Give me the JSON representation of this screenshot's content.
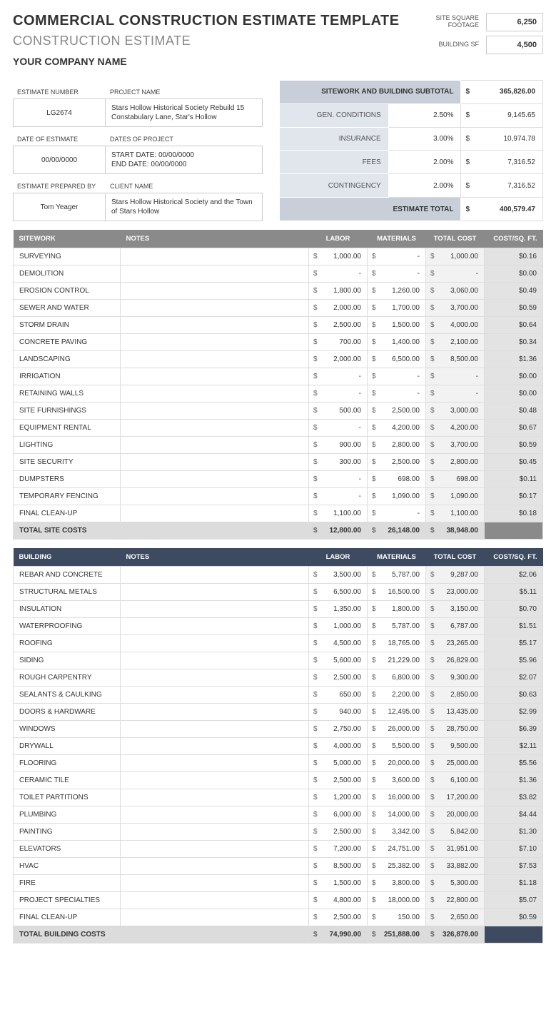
{
  "header": {
    "title": "COMMERCIAL CONSTRUCTION ESTIMATE TEMPLATE",
    "subtitle": "CONSTRUCTION ESTIMATE",
    "company": "YOUR COMPANY NAME"
  },
  "square": {
    "site_label": "SITE SQUARE FOOTAGE",
    "site_val": "6,250",
    "bldg_label": "BUILDING SF",
    "bldg_val": "4,500"
  },
  "meta": {
    "est_num_lbl": "ESTIMATE NUMBER",
    "proj_name_lbl": "PROJECT NAME",
    "est_num": "LG2674",
    "proj_name": "Stars Hollow Historical Society Rebuild 15 Constabulary Lane, Star's Hollow",
    "date_est_lbl": "DATE OF ESTIMATE",
    "dates_proj_lbl": "DATES OF PROJECT",
    "date_est": "00/00/0000",
    "dates_proj": "START DATE: 00/00/0000\nEND DATE: 00/00/0000",
    "prep_by_lbl": "ESTIMATE PREPARED BY",
    "client_lbl": "CLIENT NAME",
    "prep_by": "Tom Yeager",
    "client": "Stars Hollow Historical Society and the Town of Stars Hollow"
  },
  "subtotal": {
    "hdr": "SITEWORK AND BUILDING SUBTOTAL",
    "hdr_amt": "365,826.00",
    "rows": [
      {
        "lbl": "GEN. CONDITIONS",
        "pct": "2.50%",
        "amt": "9,145.65"
      },
      {
        "lbl": "INSURANCE",
        "pct": "3.00%",
        "amt": "10,974.78"
      },
      {
        "lbl": "FEES",
        "pct": "2.00%",
        "amt": "7,316.52"
      },
      {
        "lbl": "CONTINGENCY",
        "pct": "2.00%",
        "amt": "7,316.52"
      }
    ],
    "tot_lbl": "ESTIMATE TOTAL",
    "tot_amt": "400,579.47"
  },
  "sitework": {
    "header": [
      "SITEWORK",
      "NOTES",
      "LABOR",
      "MATERIALS",
      "TOTAL COST",
      "COST/SQ. FT."
    ],
    "rows": [
      {
        "n": "SURVEYING",
        "labor": "1,000.00",
        "mat": "-",
        "tot": "1,000.00",
        "sq": "$0.16"
      },
      {
        "n": "DEMOLITION",
        "labor": "-",
        "mat": "-",
        "tot": "-",
        "sq": "$0.00"
      },
      {
        "n": "EROSION CONTROL",
        "labor": "1,800.00",
        "mat": "1,260.00",
        "tot": "3,060.00",
        "sq": "$0.49"
      },
      {
        "n": "SEWER AND WATER",
        "labor": "2,000.00",
        "mat": "1,700.00",
        "tot": "3,700.00",
        "sq": "$0.59"
      },
      {
        "n": "STORM DRAIN",
        "labor": "2,500.00",
        "mat": "1,500.00",
        "tot": "4,000.00",
        "sq": "$0.64"
      },
      {
        "n": "CONCRETE PAVING",
        "labor": "700.00",
        "mat": "1,400.00",
        "tot": "2,100.00",
        "sq": "$0.34"
      },
      {
        "n": "LANDSCAPING",
        "labor": "2,000.00",
        "mat": "6,500.00",
        "tot": "8,500.00",
        "sq": "$1.36"
      },
      {
        "n": "IRRIGATION",
        "labor": "-",
        "mat": "-",
        "tot": "-",
        "sq": "$0.00"
      },
      {
        "n": "RETAINING WALLS",
        "labor": "-",
        "mat": "-",
        "tot": "-",
        "sq": "$0.00"
      },
      {
        "n": "SITE FURNISHINGS",
        "labor": "500.00",
        "mat": "2,500.00",
        "tot": "3,000.00",
        "sq": "$0.48"
      },
      {
        "n": "EQUIPMENT RENTAL",
        "labor": "-",
        "mat": "4,200.00",
        "tot": "4,200.00",
        "sq": "$0.67"
      },
      {
        "n": "LIGHTING",
        "labor": "900.00",
        "mat": "2,800.00",
        "tot": "3,700.00",
        "sq": "$0.59"
      },
      {
        "n": "SITE SECURITY",
        "labor": "300.00",
        "mat": "2,500.00",
        "tot": "2,800.00",
        "sq": "$0.45"
      },
      {
        "n": "DUMPSTERS",
        "labor": "-",
        "mat": "698.00",
        "tot": "698.00",
        "sq": "$0.11"
      },
      {
        "n": "TEMPORARY FENCING",
        "labor": "-",
        "mat": "1,090.00",
        "tot": "1,090.00",
        "sq": "$0.17"
      },
      {
        "n": "FINAL CLEAN-UP",
        "labor": "1,100.00",
        "mat": "-",
        "tot": "1,100.00",
        "sq": "$0.18"
      }
    ],
    "total": {
      "n": "TOTAL SITE COSTS",
      "labor": "12,800.00",
      "mat": "26,148.00",
      "tot": "38,948.00",
      "sq": ""
    }
  },
  "building": {
    "header": [
      "BUILDING",
      "NOTES",
      "LABOR",
      "MATERIALS",
      "TOTAL COST",
      "COST/SQ. FT."
    ],
    "rows": [
      {
        "n": "REBAR AND CONCRETE",
        "labor": "3,500.00",
        "mat": "5,787.00",
        "tot": "9,287.00",
        "sq": "$2.06"
      },
      {
        "n": "STRUCTURAL METALS",
        "labor": "6,500.00",
        "mat": "16,500.00",
        "tot": "23,000.00",
        "sq": "$5.11"
      },
      {
        "n": "INSULATION",
        "labor": "1,350.00",
        "mat": "1,800.00",
        "tot": "3,150.00",
        "sq": "$0.70"
      },
      {
        "n": "WATERPROOFING",
        "labor": "1,000.00",
        "mat": "5,787.00",
        "tot": "6,787.00",
        "sq": "$1.51"
      },
      {
        "n": "ROOFING",
        "labor": "4,500.00",
        "mat": "18,765.00",
        "tot": "23,265.00",
        "sq": "$5.17"
      },
      {
        "n": "SIDING",
        "labor": "5,600.00",
        "mat": "21,229.00",
        "tot": "26,829.00",
        "sq": "$5.96"
      },
      {
        "n": "ROUGH CARPENTRY",
        "labor": "2,500.00",
        "mat": "6,800.00",
        "tot": "9,300.00",
        "sq": "$2.07"
      },
      {
        "n": "SEALANTS & CAULKING",
        "labor": "650.00",
        "mat": "2,200.00",
        "tot": "2,850.00",
        "sq": "$0.63"
      },
      {
        "n": "DOORS & HARDWARE",
        "labor": "940.00",
        "mat": "12,495.00",
        "tot": "13,435.00",
        "sq": "$2.99"
      },
      {
        "n": "WINDOWS",
        "labor": "2,750.00",
        "mat": "26,000.00",
        "tot": "28,750.00",
        "sq": "$6.39"
      },
      {
        "n": "DRYWALL",
        "labor": "4,000.00",
        "mat": "5,500.00",
        "tot": "9,500.00",
        "sq": "$2.11"
      },
      {
        "n": "FLOORING",
        "labor": "5,000.00",
        "mat": "20,000.00",
        "tot": "25,000.00",
        "sq": "$5.56"
      },
      {
        "n": "CERAMIC TILE",
        "labor": "2,500.00",
        "mat": "3,600.00",
        "tot": "6,100.00",
        "sq": "$1.36"
      },
      {
        "n": "TOILET PARTITIONS",
        "labor": "1,200.00",
        "mat": "16,000.00",
        "tot": "17,200.00",
        "sq": "$3.82"
      },
      {
        "n": "PLUMBING",
        "labor": "6,000.00",
        "mat": "14,000.00",
        "tot": "20,000.00",
        "sq": "$4.44"
      },
      {
        "n": "PAINTING",
        "labor": "2,500.00",
        "mat": "3,342.00",
        "tot": "5,842.00",
        "sq": "$1.30"
      },
      {
        "n": "ELEVATORS",
        "labor": "7,200.00",
        "mat": "24,751.00",
        "tot": "31,951.00",
        "sq": "$7.10"
      },
      {
        "n": "HVAC",
        "labor": "8,500.00",
        "mat": "25,382.00",
        "tot": "33,882.00",
        "sq": "$7.53"
      },
      {
        "n": "FIRE",
        "labor": "1,500.00",
        "mat": "3,800.00",
        "tot": "5,300.00",
        "sq": "$1.18"
      },
      {
        "n": "PROJECT SPECIALTIES",
        "labor": "4,800.00",
        "mat": "18,000.00",
        "tot": "22,800.00",
        "sq": "$5.07"
      },
      {
        "n": "FINAL CLEAN-UP",
        "labor": "2,500.00",
        "mat": "150.00",
        "tot": "2,650.00",
        "sq": "$0.59"
      }
    ],
    "total": {
      "n": "TOTAL BUILDING COSTS",
      "labor": "74,990.00",
      "mat": "251,888.00",
      "tot": "326,878.00",
      "sq": ""
    }
  }
}
